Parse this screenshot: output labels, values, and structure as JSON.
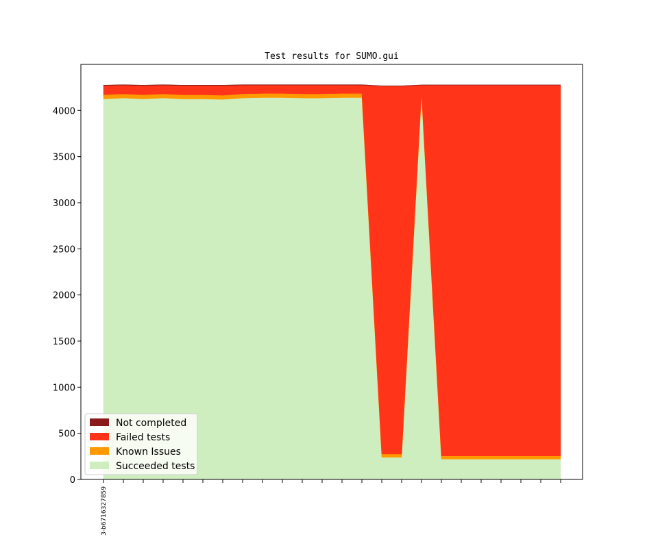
{
  "chart_data": {
    "type": "area",
    "title": "Test results for SUMO.gui",
    "xlabel": "",
    "ylabel": "",
    "ylim": [
      0,
      4500
    ],
    "yticks": [
      0,
      500,
      1000,
      1500,
      2000,
      2500,
      3000,
      3500,
      4000
    ],
    "x": [
      0,
      1,
      2,
      3,
      4,
      5,
      6,
      7,
      8,
      9,
      10,
      11,
      12,
      13,
      14,
      15,
      16,
      17,
      18,
      19,
      20,
      21,
      22,
      23
    ],
    "xtick_labels": [
      "3-b6716327859",
      "",
      "",
      "",
      "",
      "",
      "",
      "",
      "",
      "",
      "",
      "",
      "",
      "",
      "",
      "",
      "",
      "",
      "",
      "",
      "",
      "",
      "",
      ""
    ],
    "grid": false,
    "legend_position": "lower-left",
    "stack_order": [
      "Succeeded tests",
      "Known Issues",
      "Failed tests",
      "Not completed"
    ],
    "series": [
      {
        "name": "Not completed",
        "color": "#8b1a1a",
        "values": [
          5,
          5,
          5,
          5,
          5,
          5,
          5,
          5,
          5,
          5,
          5,
          5,
          5,
          5,
          3,
          3,
          3,
          3,
          3,
          3,
          3,
          3,
          3,
          3
        ]
      },
      {
        "name": "Failed tests",
        "color": "#ff3419",
        "values": [
          100,
          95,
          100,
          95,
          100,
          100,
          105,
          95,
          90,
          90,
          95,
          95,
          90,
          90,
          3990,
          3990,
          75,
          4020,
          4020,
          4020,
          4020,
          4020,
          4020,
          4020
        ]
      },
      {
        "name": "Known Issues",
        "color": "#ff9900",
        "values": [
          45,
          45,
          45,
          45,
          45,
          45,
          45,
          45,
          45,
          45,
          45,
          45,
          45,
          45,
          35,
          35,
          35,
          35,
          35,
          35,
          35,
          35,
          35,
          35
        ]
      },
      {
        "name": "Succeeded tests",
        "color": "#cfeebf",
        "values": [
          4125,
          4135,
          4125,
          4135,
          4125,
          4125,
          4120,
          4135,
          4140,
          4140,
          4135,
          4135,
          4140,
          4140,
          240,
          240,
          4165,
          220,
          220,
          220,
          220,
          220,
          220,
          220
        ]
      }
    ]
  }
}
